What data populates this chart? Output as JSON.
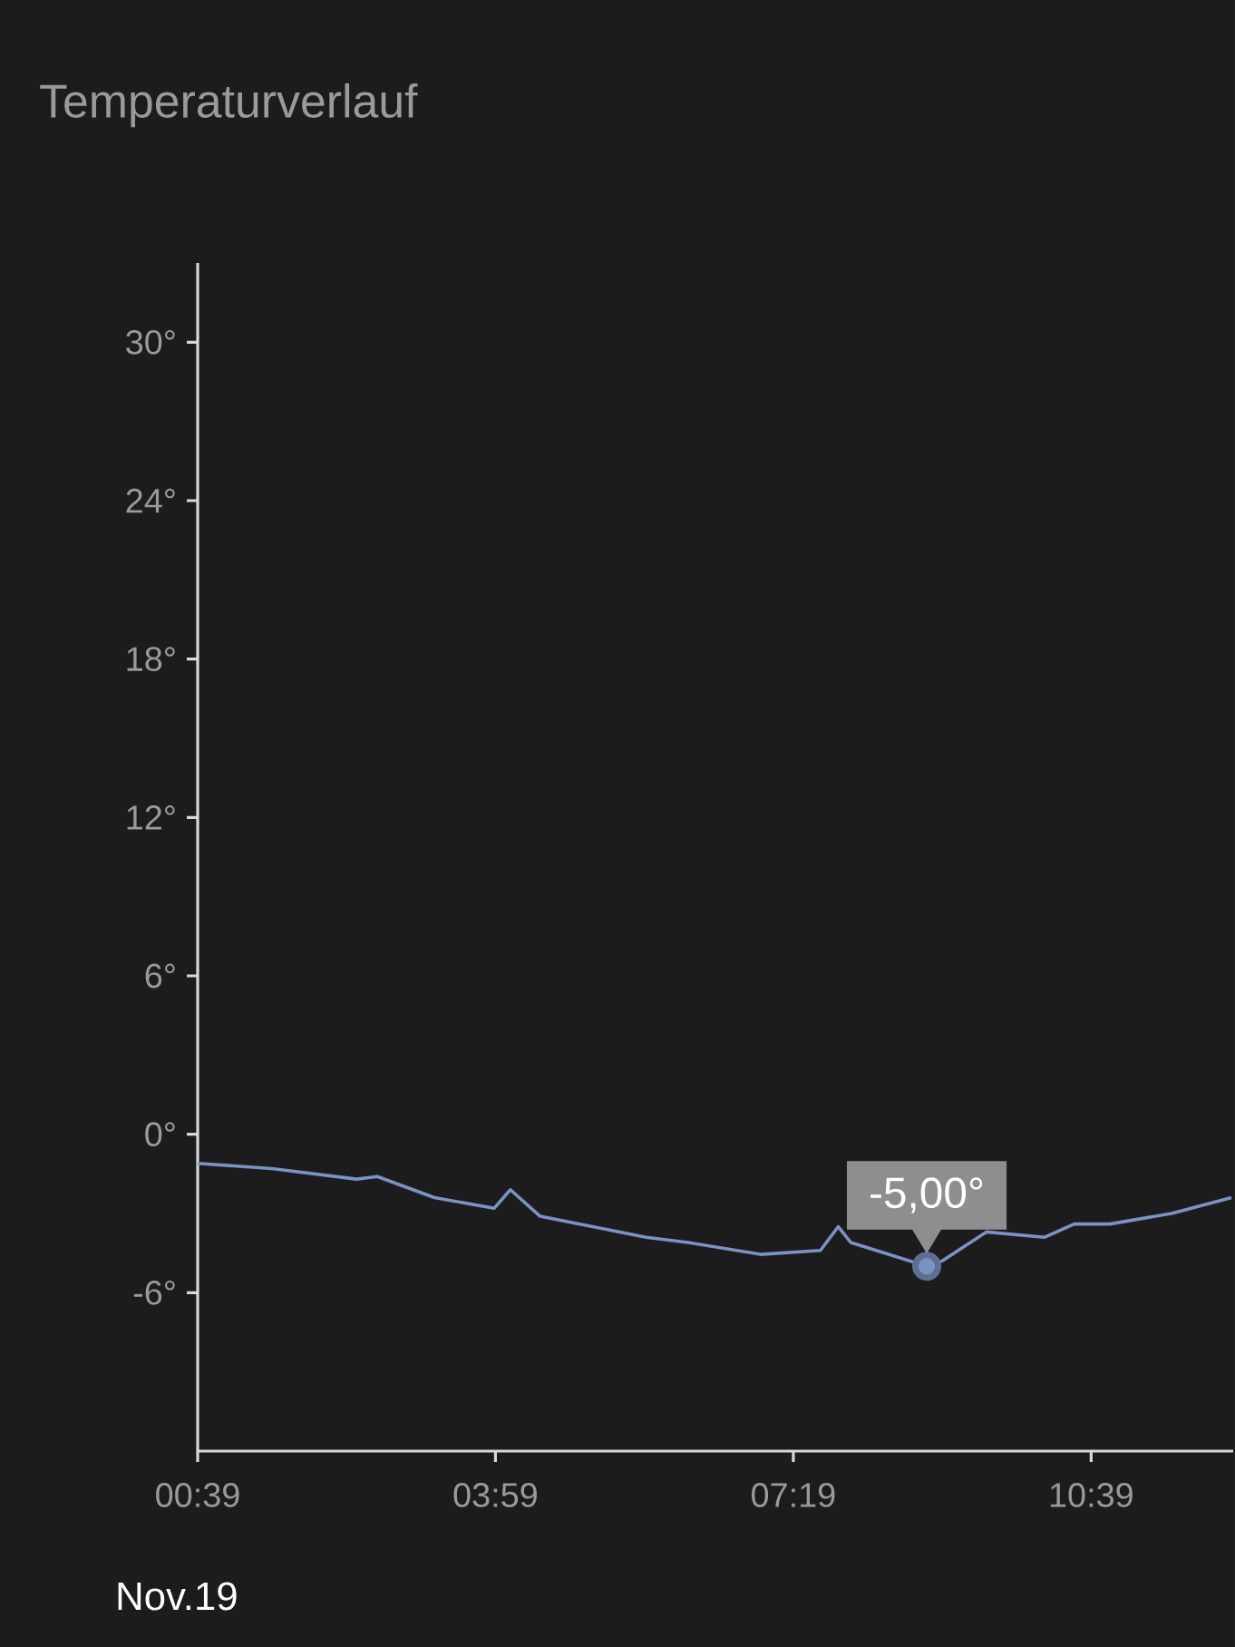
{
  "chart_data": {
    "type": "line",
    "title": "Temperaturverlauf",
    "x": [
      0.65,
      1.48,
      2.43,
      2.66,
      3.3,
      3.97,
      4.15,
      4.48,
      5.07,
      5.67,
      6.14,
      6.95,
      7.62,
      7.82,
      7.96,
      8.81,
      8.98,
      9.48,
      10.13,
      10.46,
      10.86,
      11.55,
      12.22
    ],
    "series": [
      {
        "color": "#7b93c4",
        "values": [
          -1.1,
          -1.3,
          -1.7,
          -1.6,
          -2.4,
          -2.8,
          -2.1,
          -3.1,
          -3.5,
          -3.9,
          -4.1,
          -4.55,
          -4.4,
          -3.5,
          -4.1,
          -5.0,
          -4.8,
          -3.7,
          -3.9,
          -3.4,
          -3.4,
          -3.0,
          -2.4
        ]
      }
    ],
    "xlim": [
      0.65,
      12.24
    ],
    "xticks": [
      {
        "value": 0.65,
        "label": "00:39"
      },
      {
        "value": 3.983,
        "label": "03:59"
      },
      {
        "value": 7.317,
        "label": "07:19"
      },
      {
        "value": 10.65,
        "label": "10:39"
      }
    ],
    "ylim": [
      -12,
      33
    ],
    "yticks": [
      {
        "value": -6,
        "label": "-6°"
      },
      {
        "value": 0,
        "label": "0°"
      },
      {
        "value": 6,
        "label": "6°"
      },
      {
        "value": 12,
        "label": "12°"
      },
      {
        "value": 18,
        "label": "18°"
      },
      {
        "value": 24,
        "label": "24°"
      },
      {
        "value": 30,
        "label": "30°"
      }
    ],
    "line_style": "solid",
    "annotations": [
      {
        "text": "-5,00°",
        "x": 8.81,
        "y": -5.0
      },
      "Nov.19"
    ]
  }
}
